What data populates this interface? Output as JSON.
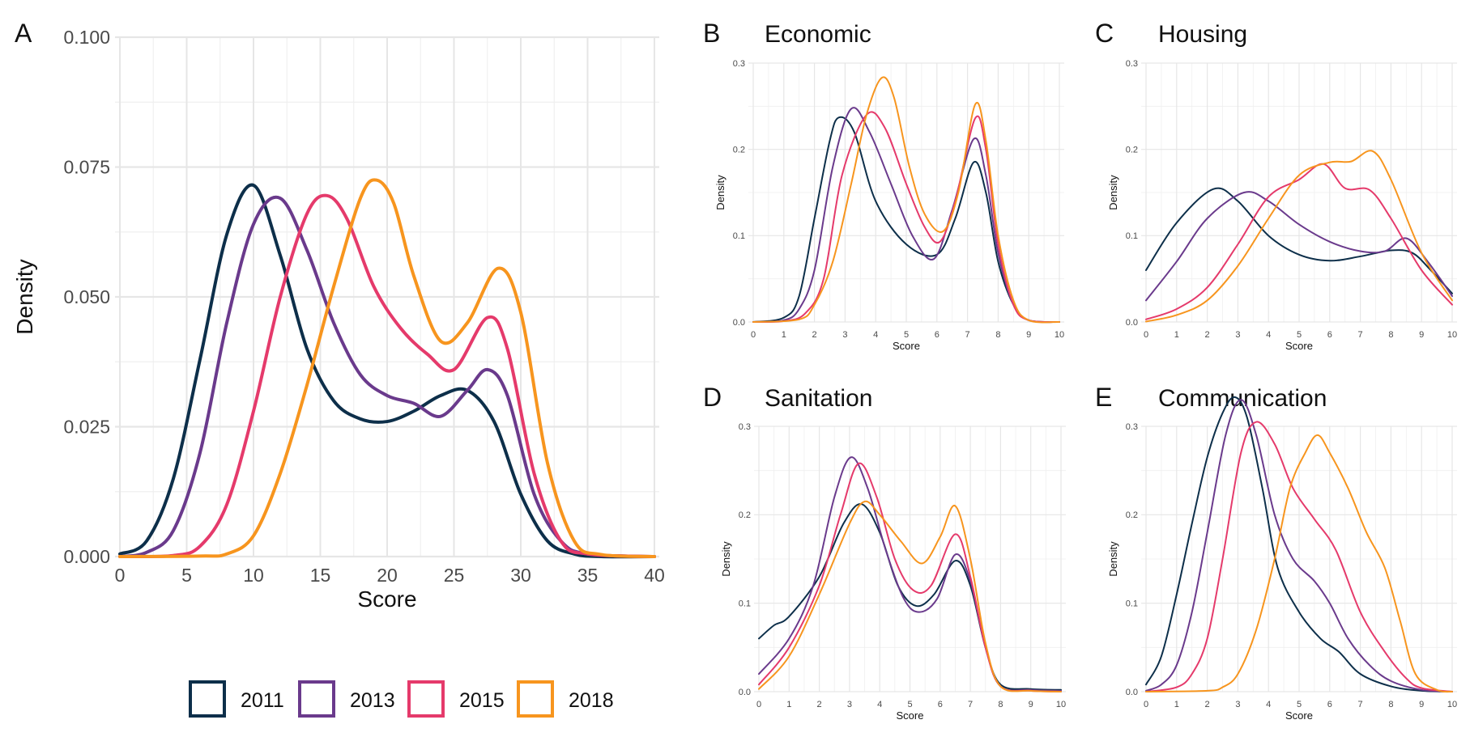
{
  "colors": {
    "2011": "#0d2f4a",
    "2013": "#6a3a8c",
    "2015": "#e53a6b",
    "2018": "#f7951e",
    "grid": "#e6e6e6",
    "text": "#111111",
    "tick": "#4a4a4a"
  },
  "legend": {
    "items": [
      "2011",
      "2013",
      "2015",
      "2018"
    ],
    "placement": "bottom"
  },
  "chart_data": [
    {
      "type": "line",
      "panel_label": "A",
      "title": "",
      "xlabel": "Score",
      "ylabel": "Density",
      "xlim": [
        0,
        40
      ],
      "ylim": [
        0,
        0.1
      ],
      "xticks": [
        0,
        5,
        10,
        15,
        20,
        25,
        30,
        35,
        40
      ],
      "yticks": [
        0.0,
        0.025,
        0.05,
        0.075,
        0.1
      ],
      "ytick_labels": [
        "0.000",
        "0.025",
        "0.050",
        "0.075",
        "0.100"
      ],
      "grid": true,
      "series": [
        {
          "name": "2011",
          "x": [
            0,
            2,
            4,
            6,
            8,
            10,
            12,
            14,
            16,
            18,
            20,
            22,
            24,
            26,
            28,
            30,
            32,
            34,
            36,
            40
          ],
          "y": [
            0.0005,
            0.003,
            0.015,
            0.038,
            0.062,
            0.0715,
            0.058,
            0.04,
            0.03,
            0.0265,
            0.026,
            0.028,
            0.031,
            0.032,
            0.026,
            0.012,
            0.003,
            0.0005,
            0,
            0
          ]
        },
        {
          "name": "2013",
          "x": [
            0,
            2,
            4,
            6,
            8,
            10,
            12,
            14,
            16,
            18,
            20,
            22,
            24,
            26,
            27.5,
            29,
            31,
            33,
            35,
            40
          ],
          "y": [
            0,
            0.0008,
            0.005,
            0.02,
            0.045,
            0.064,
            0.069,
            0.059,
            0.045,
            0.035,
            0.031,
            0.0295,
            0.027,
            0.032,
            0.036,
            0.031,
            0.012,
            0.003,
            0.0005,
            0
          ]
        },
        {
          "name": "2015",
          "x": [
            0,
            4,
            6,
            8,
            10,
            12,
            14,
            15.5,
            17,
            19,
            21,
            23,
            25,
            27.5,
            29,
            31,
            33,
            35,
            40
          ],
          "y": [
            0,
            0.0002,
            0.002,
            0.01,
            0.028,
            0.05,
            0.066,
            0.0695,
            0.065,
            0.052,
            0.044,
            0.039,
            0.036,
            0.046,
            0.04,
            0.016,
            0.003,
            0.0005,
            0
          ]
        },
        {
          "name": "2018",
          "x": [
            0,
            6,
            8,
            10,
            12,
            14,
            16,
            18,
            19.2,
            20.5,
            22,
            24,
            26,
            28.3,
            30,
            32,
            34,
            36,
            40
          ],
          "y": [
            0,
            0.0001,
            0.0005,
            0.004,
            0.016,
            0.033,
            0.052,
            0.069,
            0.0725,
            0.068,
            0.054,
            0.0415,
            0.045,
            0.0555,
            0.047,
            0.018,
            0.003,
            0.0004,
            0
          ]
        }
      ]
    },
    {
      "type": "line",
      "panel_label": "B",
      "title": "Economic",
      "xlabel": "Score",
      "ylabel": "Density",
      "xlim": [
        0,
        10
      ],
      "ylim": [
        0,
        0.3
      ],
      "xticks": [
        0,
        1,
        2,
        3,
        4,
        5,
        6,
        7,
        8,
        9,
        10
      ],
      "yticks": [
        0.0,
        0.1,
        0.2,
        0.3
      ],
      "ytick_labels": [
        "0.0",
        "0.1",
        "0.2",
        "0.3"
      ],
      "grid": true,
      "series": [
        {
          "name": "2011",
          "x": [
            0,
            1,
            1.5,
            2,
            2.5,
            2.8,
            3.3,
            4,
            5,
            6,
            6.6,
            7.2,
            7.6,
            8,
            8.5,
            9,
            10
          ],
          "y": [
            0,
            0.005,
            0.03,
            0.12,
            0.21,
            0.237,
            0.22,
            0.14,
            0.09,
            0.078,
            0.12,
            0.185,
            0.15,
            0.07,
            0.02,
            0.002,
            0
          ]
        },
        {
          "name": "2013",
          "x": [
            0,
            1,
            1.5,
            2,
            2.6,
            3.2,
            3.8,
            4.5,
            5.2,
            5.9,
            6.5,
            7.2,
            7.6,
            8,
            8.5,
            9,
            10
          ],
          "y": [
            0,
            0.002,
            0.015,
            0.06,
            0.18,
            0.247,
            0.22,
            0.16,
            0.1,
            0.073,
            0.13,
            0.212,
            0.17,
            0.08,
            0.02,
            0.002,
            0
          ]
        },
        {
          "name": "2015",
          "x": [
            0,
            1,
            1.7,
            2.3,
            2.9,
            3.7,
            4.3,
            5,
            5.6,
            6.1,
            6.6,
            7.25,
            7.6,
            8,
            8.5,
            9,
            10
          ],
          "y": [
            0,
            0.001,
            0.01,
            0.05,
            0.17,
            0.24,
            0.225,
            0.16,
            0.11,
            0.093,
            0.14,
            0.236,
            0.2,
            0.09,
            0.02,
            0.002,
            0
          ]
        },
        {
          "name": "2018",
          "x": [
            0,
            1.5,
            2,
            2.6,
            3.2,
            3.7,
            4.2,
            4.6,
            5.1,
            5.6,
            6.2,
            6.7,
            7.25,
            7.6,
            8,
            8.5,
            9,
            10
          ],
          "y": [
            0,
            0.003,
            0.02,
            0.07,
            0.16,
            0.24,
            0.283,
            0.26,
            0.18,
            0.125,
            0.105,
            0.15,
            0.252,
            0.21,
            0.1,
            0.025,
            0.002,
            0
          ]
        }
      ]
    },
    {
      "type": "line",
      "panel_label": "C",
      "title": "Housing",
      "xlabel": "Score",
      "ylabel": "Density",
      "xlim": [
        0,
        10
      ],
      "ylim": [
        0,
        0.3
      ],
      "xticks": [
        0,
        1,
        2,
        3,
        4,
        5,
        6,
        7,
        8,
        9,
        10
      ],
      "yticks": [
        0.0,
        0.1,
        0.2,
        0.3
      ],
      "ytick_labels": [
        "0.0",
        "0.1",
        "0.2",
        "0.3"
      ],
      "grid": true,
      "series": [
        {
          "name": "2011",
          "x": [
            0,
            1,
            2.2,
            3,
            4,
            5,
            6,
            7,
            8,
            8.7,
            9.3,
            10
          ],
          "y": [
            0.06,
            0.115,
            0.154,
            0.14,
            0.1,
            0.078,
            0.071,
            0.076,
            0.083,
            0.08,
            0.06,
            0.033
          ]
        },
        {
          "name": "2013",
          "x": [
            0,
            1,
            2,
            3.2,
            4,
            5,
            6,
            7,
            7.8,
            8.5,
            9.2,
            10
          ],
          "y": [
            0.025,
            0.07,
            0.12,
            0.15,
            0.14,
            0.113,
            0.093,
            0.082,
            0.082,
            0.097,
            0.07,
            0.03
          ]
        },
        {
          "name": "2015",
          "x": [
            0,
            1,
            2,
            3,
            4,
            5,
            5.8,
            6.5,
            7.3,
            8,
            9,
            10
          ],
          "y": [
            0.003,
            0.015,
            0.04,
            0.09,
            0.145,
            0.165,
            0.183,
            0.155,
            0.153,
            0.12,
            0.06,
            0.02
          ]
        },
        {
          "name": "2018",
          "x": [
            0,
            1,
            2,
            3,
            4,
            5,
            6,
            6.7,
            7.4,
            8,
            9,
            10
          ],
          "y": [
            0.0005,
            0.008,
            0.025,
            0.065,
            0.12,
            0.17,
            0.185,
            0.186,
            0.198,
            0.165,
            0.08,
            0.025
          ]
        }
      ]
    },
    {
      "type": "line",
      "panel_label": "D",
      "title": "Sanitation",
      "xlabel": "Score",
      "ylabel": "Density",
      "xlim": [
        0,
        10
      ],
      "ylim": [
        0,
        0.3
      ],
      "xticks": [
        0,
        1,
        2,
        3,
        4,
        5,
        6,
        7,
        8,
        9,
        10
      ],
      "yticks": [
        0.0,
        0.1,
        0.2,
        0.3
      ],
      "ytick_labels": [
        "0.0",
        "0.1",
        "0.2",
        "0.3"
      ],
      "grid": true,
      "series": [
        {
          "name": "2011",
          "x": [
            0,
            0.5,
            1,
            2,
            2.8,
            3.4,
            4,
            4.6,
            5.2,
            5.8,
            6.5,
            7,
            7.5,
            8,
            9,
            10
          ],
          "y": [
            0.06,
            0.075,
            0.085,
            0.13,
            0.19,
            0.212,
            0.18,
            0.12,
            0.097,
            0.11,
            0.148,
            0.12,
            0.05,
            0.008,
            0.003,
            0.002
          ]
        },
        {
          "name": "2013",
          "x": [
            0,
            1,
            1.8,
            2.5,
            3.05,
            3.6,
            4.2,
            4.8,
            5.3,
            5.9,
            6.5,
            7,
            7.5,
            8,
            9,
            10
          ],
          "y": [
            0.02,
            0.06,
            0.12,
            0.22,
            0.265,
            0.23,
            0.16,
            0.105,
            0.09,
            0.105,
            0.155,
            0.125,
            0.05,
            0.006,
            0.002,
            0.001
          ]
        },
        {
          "name": "2015",
          "x": [
            0,
            1,
            2,
            2.7,
            3.3,
            3.9,
            4.5,
            5.1,
            5.7,
            6.5,
            7,
            7.5,
            8,
            9,
            10
          ],
          "y": [
            0.008,
            0.05,
            0.12,
            0.2,
            0.258,
            0.22,
            0.15,
            0.115,
            0.12,
            0.178,
            0.13,
            0.05,
            0.006,
            0.001,
            0
          ]
        },
        {
          "name": "2018",
          "x": [
            0,
            1,
            2,
            3,
            3.5,
            4,
            4.7,
            5.4,
            6,
            6.5,
            7,
            7.5,
            8,
            9,
            10
          ],
          "y": [
            0.003,
            0.04,
            0.11,
            0.19,
            0.215,
            0.2,
            0.17,
            0.145,
            0.175,
            0.21,
            0.15,
            0.055,
            0.006,
            0.001,
            0
          ]
        }
      ]
    },
    {
      "type": "line",
      "panel_label": "E",
      "title": "Communication",
      "xlabel": "Score",
      "ylabel": "Density",
      "xlim": [
        0,
        10
      ],
      "ylim": [
        0,
        0.3
      ],
      "xticks": [
        0,
        1,
        2,
        3,
        4,
        5,
        6,
        7,
        8,
        9,
        10
      ],
      "yticks": [
        0.0,
        0.1,
        0.2,
        0.3
      ],
      "ytick_labels": [
        "0.0",
        "0.1",
        "0.2",
        "0.3"
      ],
      "grid": true,
      "series": [
        {
          "name": "2011",
          "x": [
            0,
            0.5,
            1,
            1.5,
            2,
            2.5,
            2.9,
            3.3,
            3.8,
            4.3,
            5,
            5.7,
            6.3,
            7,
            8,
            9,
            10
          ],
          "y": [
            0.008,
            0.04,
            0.11,
            0.19,
            0.265,
            0.315,
            0.333,
            0.31,
            0.23,
            0.14,
            0.09,
            0.06,
            0.045,
            0.02,
            0.006,
            0.001,
            0
          ]
        },
        {
          "name": "2013",
          "x": [
            0,
            0.5,
            1,
            1.5,
            2,
            2.6,
            3.1,
            3.6,
            4.2,
            4.8,
            5.5,
            6,
            6.6,
            7.3,
            8,
            9,
            10
          ],
          "y": [
            0.001,
            0.008,
            0.03,
            0.09,
            0.18,
            0.29,
            0.33,
            0.29,
            0.2,
            0.15,
            0.125,
            0.1,
            0.06,
            0.03,
            0.012,
            0.002,
            0
          ]
        },
        {
          "name": "2015",
          "x": [
            0,
            1,
            1.5,
            2,
            2.5,
            3.1,
            3.6,
            4.2,
            4.8,
            5.5,
            6.2,
            7,
            7.8,
            8.5,
            9,
            10
          ],
          "y": [
            0,
            0.005,
            0.02,
            0.06,
            0.15,
            0.27,
            0.305,
            0.28,
            0.23,
            0.195,
            0.16,
            0.09,
            0.045,
            0.015,
            0.004,
            0
          ]
        },
        {
          "name": "2018",
          "x": [
            0,
            2,
            2.5,
            3,
            3.6,
            4.2,
            4.7,
            5.2,
            5.6,
            6,
            6.6,
            7.2,
            7.8,
            8.3,
            8.8,
            9.5,
            10
          ],
          "y": [
            0,
            0.001,
            0.005,
            0.02,
            0.07,
            0.15,
            0.23,
            0.27,
            0.29,
            0.27,
            0.23,
            0.18,
            0.14,
            0.08,
            0.02,
            0.002,
            0
          ]
        }
      ]
    }
  ]
}
